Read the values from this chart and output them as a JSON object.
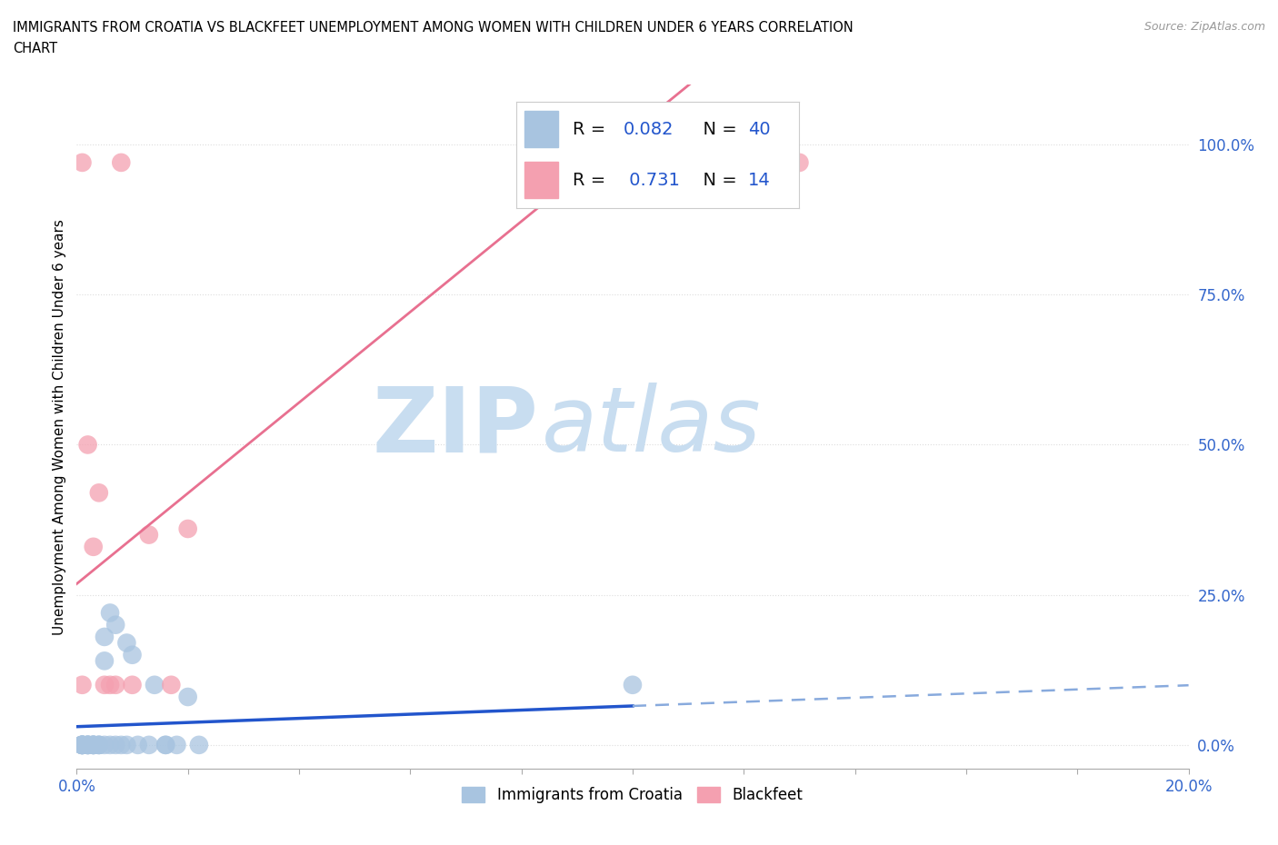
{
  "title_line1": "IMMIGRANTS FROM CROATIA VS BLACKFEET UNEMPLOYMENT AMONG WOMEN WITH CHILDREN UNDER 6 YEARS CORRELATION",
  "title_line2": "CHART",
  "source": "Source: ZipAtlas.com",
  "ylabel": "Unemployment Among Women with Children Under 6 years",
  "xlim": [
    0.0,
    0.2
  ],
  "ylim": [
    -0.04,
    1.1
  ],
  "yticks": [
    0.0,
    0.25,
    0.5,
    0.75,
    1.0
  ],
  "ytick_labels": [
    "0.0%",
    "25.0%",
    "50.0%",
    "75.0%",
    "100.0%"
  ],
  "croatia_color": "#a8c4e0",
  "blackfeet_color": "#f4a0b0",
  "croatia_line_color": "#2255cc",
  "blackfeet_line_color": "#e87090",
  "croatia_R": 0.082,
  "croatia_N": 40,
  "blackfeet_R": 0.731,
  "blackfeet_N": 14,
  "watermark_zip": "ZIP",
  "watermark_atlas": "atlas",
  "watermark_color": "#c8ddf0",
  "legend_R_label_color": "#111111",
  "legend_R_value_color": "#2255cc",
  "legend_N_value_color": "#2255cc",
  "croatia_scatter_x": [
    0.001,
    0.001,
    0.001,
    0.001,
    0.001,
    0.001,
    0.001,
    0.002,
    0.002,
    0.002,
    0.002,
    0.002,
    0.003,
    0.003,
    0.003,
    0.003,
    0.003,
    0.004,
    0.004,
    0.004,
    0.005,
    0.005,
    0.005,
    0.006,
    0.006,
    0.007,
    0.007,
    0.008,
    0.009,
    0.009,
    0.01,
    0.011,
    0.013,
    0.014,
    0.016,
    0.016,
    0.018,
    0.02,
    0.022,
    0.1
  ],
  "croatia_scatter_y": [
    0.0,
    0.0,
    0.0,
    0.0,
    0.0,
    0.0,
    0.0,
    0.0,
    0.0,
    0.0,
    0.0,
    0.0,
    0.0,
    0.0,
    0.0,
    0.0,
    0.0,
    0.0,
    0.0,
    0.0,
    0.14,
    0.18,
    0.0,
    0.22,
    0.0,
    0.2,
    0.0,
    0.0,
    0.0,
    0.17,
    0.15,
    0.0,
    0.0,
    0.1,
    0.0,
    0.0,
    0.0,
    0.08,
    0.0,
    0.1
  ],
  "blackfeet_scatter_x": [
    0.001,
    0.001,
    0.002,
    0.003,
    0.004,
    0.005,
    0.006,
    0.007,
    0.008,
    0.01,
    0.013,
    0.017,
    0.02,
    0.13
  ],
  "blackfeet_scatter_y": [
    0.1,
    0.97,
    0.5,
    0.33,
    0.42,
    0.1,
    0.1,
    0.1,
    0.97,
    0.1,
    0.35,
    0.1,
    0.36,
    0.97
  ],
  "dashed_line_color": "#88aadd",
  "grid_color": "#dddddd",
  "grid_style": "dotted"
}
